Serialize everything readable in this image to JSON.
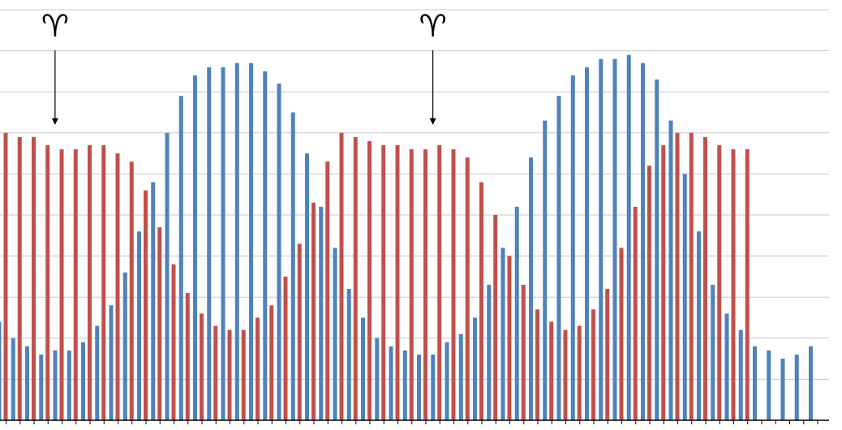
{
  "chart_data": {
    "type": "bar",
    "title": "",
    "xlabel": "",
    "ylabel": "",
    "ylim": [
      0,
      10
    ],
    "grid": true,
    "legend": "none",
    "colors": {
      "blue": "#4f81bd",
      "red": "#c0504d",
      "grid": "#c8c8c8",
      "axis": "#000000"
    },
    "series": [
      {
        "color": "blue",
        "values": [
          2.4,
          2.0,
          1.8,
          1.6,
          1.7,
          1.7,
          1.9,
          2.3,
          2.8,
          3.6,
          4.6,
          5.8,
          7.0,
          7.9,
          8.4,
          8.6,
          8.6,
          8.7,
          8.7,
          8.5,
          8.2,
          7.5,
          6.5,
          5.2,
          4.2,
          3.2,
          2.5,
          2.0,
          1.8,
          1.7,
          1.6,
          1.6,
          1.9,
          2.1,
          2.5,
          3.3,
          4.2,
          5.2,
          6.4,
          7.3,
          7.9,
          8.4,
          8.6,
          8.8,
          8.8,
          8.9,
          8.7,
          8.3,
          7.3,
          6.0,
          4.6,
          3.3,
          2.6,
          2.2,
          1.8,
          1.7,
          1.5,
          1.6,
          1.8
        ]
      },
      {
        "color": "red",
        "values": [
          7.0,
          6.9,
          6.9,
          6.7,
          6.6,
          6.6,
          6.7,
          6.7,
          6.5,
          6.3,
          5.6,
          4.7,
          3.8,
          3.1,
          2.6,
          2.3,
          2.2,
          2.2,
          2.5,
          2.8,
          3.5,
          4.3,
          5.3,
          6.3,
          7.0,
          6.9,
          6.8,
          6.7,
          6.7,
          6.6,
          6.6,
          6.7,
          6.6,
          6.4,
          5.8,
          5.0,
          4.0,
          3.3,
          2.7,
          2.4,
          2.2,
          2.3,
          2.7,
          3.2,
          4.2,
          5.2,
          6.2,
          6.7,
          7.0,
          7.0,
          6.9,
          6.7,
          6.6,
          6.6
        ]
      }
    ],
    "annotations": [
      {
        "symbol": "♈",
        "category_index": 3.5
      },
      {
        "symbol": "♈",
        "category_index": 30.5
      }
    ]
  }
}
